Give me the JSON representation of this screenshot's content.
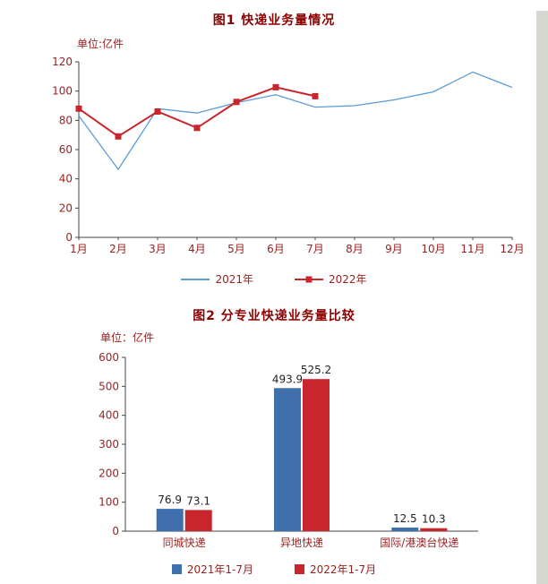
{
  "page": {
    "edge_strip_color": "#d5d8d0",
    "title_color": "#8b0000",
    "label_color": "#992222",
    "axis_color": "#444444",
    "value_label_color": "#222222"
  },
  "chart_data": [
    {
      "type": "line",
      "title": "图1  快递业务量情况",
      "unit_label": "单位:亿件",
      "categories": [
        "1月",
        "2月",
        "3月",
        "4月",
        "5月",
        "6月",
        "7月",
        "8月",
        "9月",
        "10月",
        "11月",
        "12月"
      ],
      "series": [
        {
          "name": "2021年",
          "color": "#5b9bd5",
          "marker": "none",
          "line_width": 1.3,
          "values": [
            83,
            46.5,
            88,
            85,
            92,
            97.5,
            89,
            90,
            94,
            99.5,
            113,
            102.5
          ]
        },
        {
          "name": "2022年",
          "color": "#c9252c",
          "marker": "square",
          "line_width": 2,
          "values": [
            88,
            69,
            86,
            74.8,
            92.6,
            102.6,
            96.5
          ]
        }
      ],
      "ylim": [
        0,
        120
      ],
      "ytick_step": 20,
      "grid": false,
      "legend_position": "bottom"
    },
    {
      "type": "bar",
      "title": "图2  分专业快递业务量比较",
      "unit_label": "单位：亿件",
      "categories": [
        "同城快递",
        "异地快递",
        "国际/港澳台快递"
      ],
      "series": [
        {
          "name": "2021年1-7月",
          "color": "#3f6fad",
          "values": [
            76.9,
            493.9,
            12.5
          ]
        },
        {
          "name": "2022年1-7月",
          "color": "#c9252c",
          "values": [
            73.1,
            525.2,
            10.3
          ]
        }
      ],
      "ylim": [
        0,
        600
      ],
      "ytick_step": 100,
      "value_labels": true,
      "grid": false,
      "legend_position": "bottom"
    }
  ]
}
